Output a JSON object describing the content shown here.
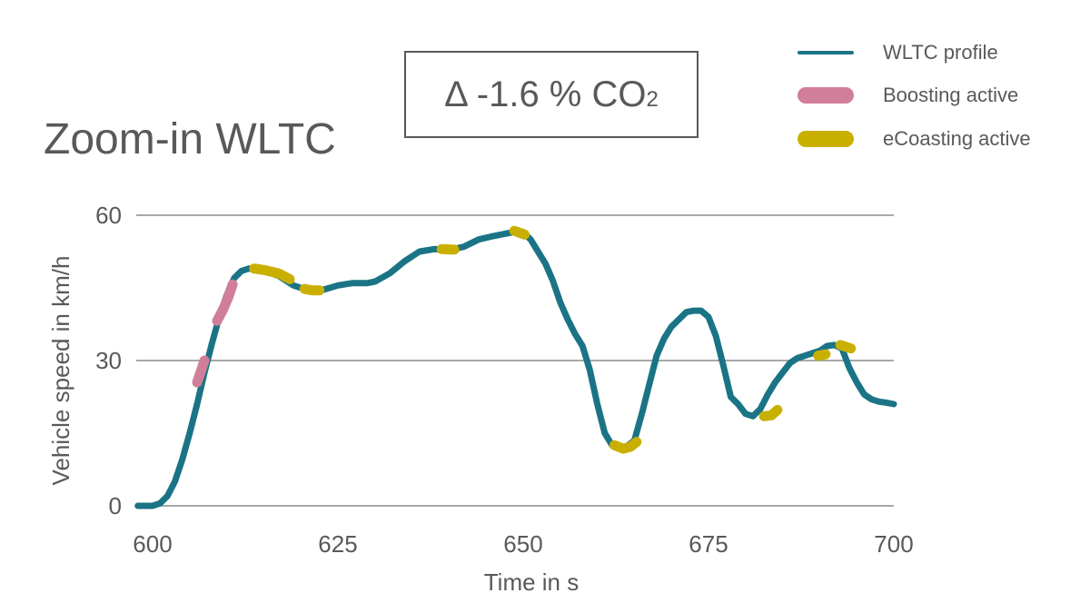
{
  "title": "Zoom-in WLTC",
  "delta_box": {
    "prefix": "Δ -1.6 % CO",
    "subscript": "2"
  },
  "legend": [
    {
      "label": "WLTC profile",
      "color": "#1a7485",
      "style": "line"
    },
    {
      "label": "Boosting active",
      "color": "#d17e9a",
      "style": "thick"
    },
    {
      "label": "eCoasting active",
      "color": "#c9b000",
      "style": "thick"
    }
  ],
  "chart_data": {
    "type": "line",
    "title": "Zoom-in WLTC",
    "xlabel": "Time in s",
    "ylabel": "Vehicle speed in km/h",
    "xlim": [
      600,
      700
    ],
    "ylim": [
      0,
      60
    ],
    "xticks": [
      "600",
      "625",
      "650",
      "675",
      "700"
    ],
    "yticks": [
      "0",
      "30",
      "60"
    ],
    "grid": "horizontal",
    "legend_position": "top-right",
    "series": [
      {
        "name": "WLTC profile",
        "color": "#1a7485",
        "x": [
          598,
          600,
          601,
          602,
          603,
          604,
          605,
          606,
          607,
          608,
          609,
          610,
          611,
          612,
          613,
          614,
          615,
          617,
          619,
          621,
          623,
          625,
          627,
          629,
          630,
          632,
          634,
          636,
          638,
          640,
          642,
          644,
          646,
          648,
          649,
          650,
          651,
          652,
          653,
          654,
          655,
          656,
          657,
          658,
          659,
          660,
          661,
          662,
          663,
          664,
          665,
          666,
          667,
          668,
          669,
          670,
          671,
          672,
          673,
          674,
          675,
          676,
          677,
          678,
          679,
          680,
          681,
          682,
          683,
          684,
          685,
          686,
          687,
          688,
          689,
          690,
          691,
          692,
          693,
          694,
          695,
          696,
          697,
          698,
          699,
          700
        ],
        "values": [
          0,
          0,
          0.5,
          2,
          5,
          9.5,
          15,
          21,
          27.5,
          33.5,
          39,
          43.5,
          47,
          48.5,
          49,
          48.8,
          48.5,
          47.5,
          45.5,
          44.5,
          44.6,
          45.5,
          46,
          46,
          46.3,
          48,
          50.5,
          52.5,
          53,
          52.8,
          53.5,
          55,
          55.7,
          56.3,
          56.6,
          56.5,
          55,
          52.5,
          50,
          46.5,
          42,
          38.5,
          35.5,
          33,
          28,
          21,
          15,
          12.5,
          12,
          12.3,
          13.5,
          19,
          25,
          31,
          34.5,
          37,
          38.5,
          40,
          40.3,
          40.3,
          39,
          35,
          29,
          22.5,
          21,
          19,
          18.5,
          20,
          23,
          25.5,
          27.5,
          29.5,
          30.5,
          31,
          31.5,
          32,
          33,
          33.2,
          32.5,
          28.5,
          25.5,
          23,
          22,
          21.5,
          21.3,
          21
        ]
      },
      {
        "name": "Boosting active",
        "color": "#d17e9a",
        "segments": [
          {
            "x": [
              606,
              607
            ],
            "values": [
              25.5,
              30
            ]
          },
          {
            "x": [
              608.7,
              609.5,
              610.2,
              610.8
            ],
            "values": [
              38.2,
              40.5,
              43,
              45.7
            ]
          }
        ]
      },
      {
        "name": "eCoasting active",
        "color": "#c9b000",
        "segments": [
          {
            "x": [
              613.7,
              615,
              617,
              618.5
            ],
            "values": [
              49,
              48.7,
              48,
              46.8
            ]
          },
          {
            "x": [
              620.5,
              621.5,
              622.5
            ],
            "values": [
              44.8,
              44.5,
              44.5
            ]
          },
          {
            "x": [
              639,
              640.7
            ],
            "values": [
              53,
              52.9
            ]
          },
          {
            "x": [
              648.8,
              650.2
            ],
            "values": [
              56.8,
              56
            ]
          },
          {
            "x": [
              662.3,
              663.5,
              664.5,
              665.3
            ],
            "values": [
              12.5,
              11.8,
              12.2,
              13.2
            ]
          },
          {
            "x": [
              682.5,
              683.5,
              684.3
            ],
            "values": [
              18.5,
              18.7,
              19.8
            ]
          },
          {
            "x": [
              689.8,
              690.8
            ],
            "values": [
              31,
              31.3
            ]
          },
          {
            "x": [
              692.8,
              694.2
            ],
            "values": [
              33.2,
              32.5
            ]
          }
        ]
      }
    ]
  }
}
